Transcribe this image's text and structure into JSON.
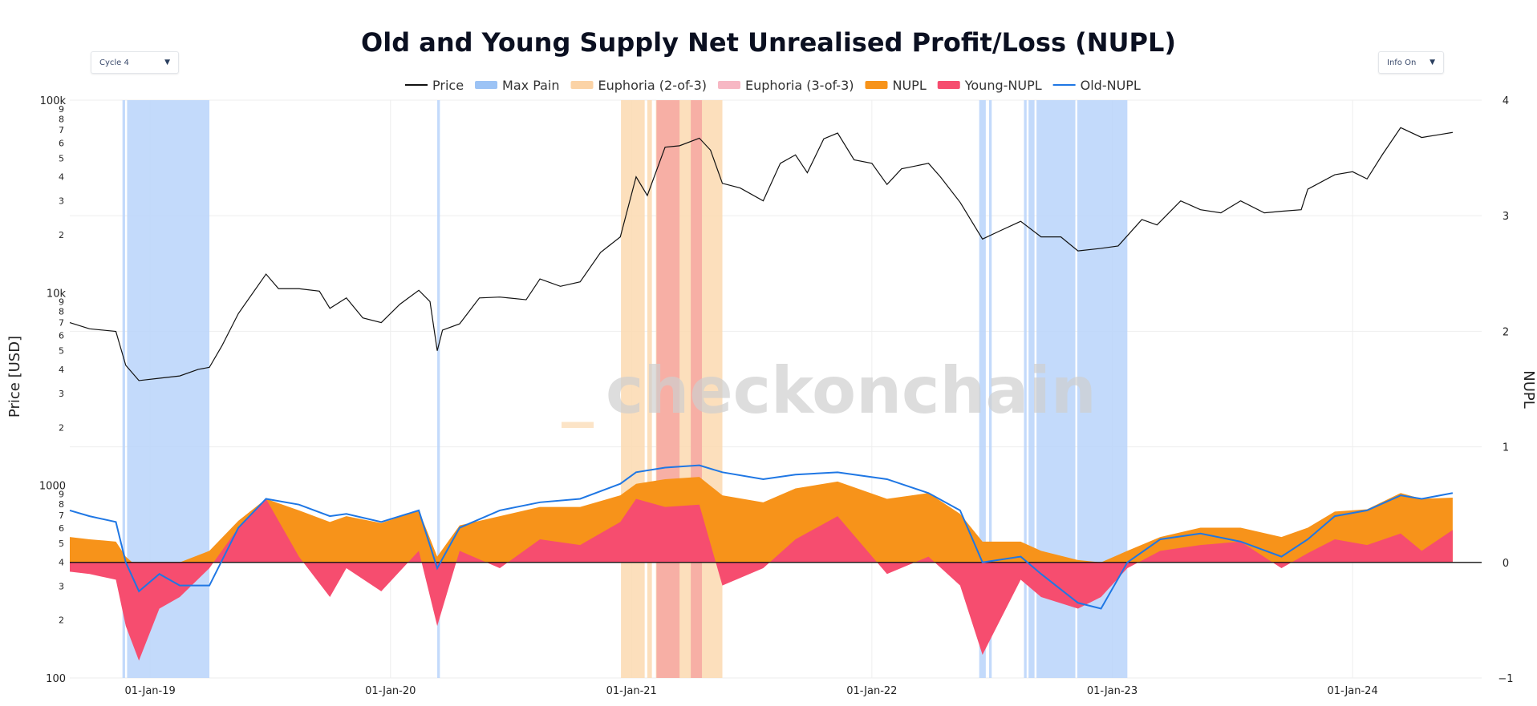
{
  "dropdowns": {
    "cycle": {
      "label": "Cycle 4",
      "caret": "▼"
    },
    "info": {
      "label": "Info On",
      "caret": "▼"
    }
  },
  "watermark": {
    "prefix": "_",
    "text": "checkonchain"
  },
  "chart_data": {
    "type": "line",
    "title": "Old and Young Supply Net Unrealised Profit/Loss (NUPL)",
    "ylabel_left": "Price [USD]",
    "ylabel_right": "NUPL",
    "y_left_scale": "log",
    "y_left_range": [
      100,
      100000
    ],
    "y_right_range": [
      -1,
      4
    ],
    "x_range": [
      "2018-09-01",
      "2024-07-15"
    ],
    "x_ticks": [
      {
        "date": "2019-01-01",
        "label": "01-Jan-19"
      },
      {
        "date": "2020-01-01",
        "label": "01-Jan-20"
      },
      {
        "date": "2021-01-01",
        "label": "01-Jan-21"
      },
      {
        "date": "2022-01-01",
        "label": "01-Jan-22"
      },
      {
        "date": "2023-01-01",
        "label": "01-Jan-23"
      },
      {
        "date": "2024-01-01",
        "label": "01-Jan-24"
      }
    ],
    "y_left_major_ticks": [
      {
        "value": 100,
        "label": "100"
      },
      {
        "value": 1000,
        "label": "1000"
      },
      {
        "value": 10000,
        "label": "10k"
      },
      {
        "value": 100000,
        "label": "100k"
      }
    ],
    "y_left_minor_labels": [
      "2",
      "3",
      "4",
      "5",
      "6",
      "7",
      "8",
      "9"
    ],
    "y_right_ticks": [
      {
        "value": -1,
        "label": "−1"
      },
      {
        "value": 0,
        "label": "0"
      },
      {
        "value": 1,
        "label": "1"
      },
      {
        "value": 2,
        "label": "2"
      },
      {
        "value": 3,
        "label": "3"
      },
      {
        "value": 4,
        "label": "4"
      }
    ],
    "grid": true,
    "legend_position": "top-center",
    "legend": [
      {
        "name": "Price",
        "kind": "line",
        "color": "#111111"
      },
      {
        "name": "Max Pain",
        "kind": "band",
        "color": "#9cc3f5"
      },
      {
        "name": "Euphoria (2-of-3)",
        "kind": "band",
        "color": "#fbd3a6"
      },
      {
        "name": "Euphoria (3-of-3)",
        "kind": "band",
        "color": "#f7b8c4"
      },
      {
        "name": "NUPL",
        "kind": "area",
        "color": "#f7931a"
      },
      {
        "name": "Young-NUPL",
        "kind": "area",
        "color": "#f64d6f"
      },
      {
        "name": "Old-NUPL",
        "kind": "line",
        "color": "#1f77e4"
      }
    ],
    "colors": {
      "price": "#111111",
      "max_pain": "#b9d4fa",
      "max_pain_edge": "#4a90e2",
      "euphoria2": "#fcd9b0",
      "euphoria3": "#f6a7a1",
      "nupl": "#f7931a",
      "young_nupl": "#f64d6f",
      "old_nupl": "#1f77e4"
    },
    "max_pain_bands": [
      [
        "2018-11-20",
        "2018-11-24"
      ],
      [
        "2018-11-27",
        "2019-04-01"
      ],
      [
        "2020-03-12",
        "2020-03-16"
      ],
      [
        "2022-06-13",
        "2022-06-23"
      ],
      [
        "2022-06-28",
        "2022-07-02"
      ],
      [
        "2022-08-20",
        "2022-08-24"
      ],
      [
        "2022-08-27",
        "2022-09-05"
      ],
      [
        "2022-09-08",
        "2022-11-06"
      ],
      [
        "2022-11-09",
        "2023-01-24"
      ]
    ],
    "euphoria2_bands": [
      [
        "2020-12-16",
        "2021-01-21"
      ],
      [
        "2021-01-25",
        "2021-02-01"
      ],
      [
        "2021-02-07",
        "2021-05-19"
      ]
    ],
    "euphoria3_bands": [
      [
        "2021-02-08",
        "2021-03-15"
      ],
      [
        "2021-04-01",
        "2021-04-18"
      ]
    ],
    "price_series": {
      "x": [
        "2018-09-01",
        "2018-10-01",
        "2018-11-10",
        "2018-11-25",
        "2018-12-15",
        "2019-01-15",
        "2019-02-15",
        "2019-03-15",
        "2019-04-01",
        "2019-04-20",
        "2019-05-15",
        "2019-06-26",
        "2019-07-15",
        "2019-08-15",
        "2019-09-15",
        "2019-10-01",
        "2019-10-26",
        "2019-11-20",
        "2019-12-18",
        "2020-01-15",
        "2020-02-13",
        "2020-03-01",
        "2020-03-12",
        "2020-03-20",
        "2020-04-15",
        "2020-05-15",
        "2020-06-15",
        "2020-07-25",
        "2020-08-15",
        "2020-09-15",
        "2020-10-15",
        "2020-11-15",
        "2020-12-15",
        "2021-01-08",
        "2021-01-25",
        "2021-02-21",
        "2021-03-15",
        "2021-04-14",
        "2021-05-01",
        "2021-05-19",
        "2021-06-15",
        "2021-07-20",
        "2021-08-15",
        "2021-09-07",
        "2021-09-25",
        "2021-10-20",
        "2021-11-10",
        "2021-12-05",
        "2022-01-01",
        "2022-01-24",
        "2022-02-15",
        "2022-03-28",
        "2022-04-15",
        "2022-05-15",
        "2022-06-18",
        "2022-07-15",
        "2022-08-15",
        "2022-09-15",
        "2022-10-15",
        "2022-11-10",
        "2022-12-15",
        "2023-01-10",
        "2023-02-15",
        "2023-03-10",
        "2023-04-15",
        "2023-05-15",
        "2023-06-15",
        "2023-07-15",
        "2023-08-20",
        "2023-09-15",
        "2023-10-15",
        "2023-10-25",
        "2023-12-05",
        "2024-01-01",
        "2024-01-23",
        "2024-02-15",
        "2024-03-14",
        "2024-04-15",
        "2024-05-15",
        "2024-06-01"
      ],
      "y": [
        7000,
        6500,
        6300,
        4200,
        3500,
        3600,
        3700,
        4000,
        4100,
        5300,
        7800,
        12500,
        10500,
        10500,
        10200,
        8300,
        9400,
        7400,
        7000,
        8700,
        10300,
        9000,
        5000,
        6400,
        6900,
        9400,
        9500,
        9200,
        11800,
        10800,
        11400,
        16200,
        19500,
        40000,
        32000,
        57000,
        58000,
        63500,
        55000,
        37000,
        35000,
        30000,
        47000,
        52000,
        42000,
        63000,
        67500,
        49000,
        47000,
        36500,
        44000,
        47000,
        40000,
        29500,
        19000,
        21000,
        23500,
        19500,
        19500,
        16500,
        17000,
        17500,
        24000,
        22500,
        30000,
        27000,
        26000,
        30000,
        26000,
        26500,
        27000,
        34500,
        41000,
        42500,
        39000,
        52000,
        72000,
        64000,
        66500,
        68000
      ]
    },
    "nupl_series": {
      "x": [
        "2018-09-01",
        "2018-10-01",
        "2018-11-10",
        "2018-11-25",
        "2018-12-15",
        "2019-01-15",
        "2019-02-15",
        "2019-04-01",
        "2019-05-15",
        "2019-06-26",
        "2019-08-15",
        "2019-10-01",
        "2019-10-26",
        "2019-12-18",
        "2020-02-13",
        "2020-03-12",
        "2020-04-15",
        "2020-06-15",
        "2020-08-15",
        "2020-10-15",
        "2020-12-15",
        "2021-01-08",
        "2021-02-21",
        "2021-04-14",
        "2021-05-19",
        "2021-07-20",
        "2021-09-07",
        "2021-11-10",
        "2022-01-24",
        "2022-03-28",
        "2022-05-15",
        "2022-06-18",
        "2022-08-15",
        "2022-09-15",
        "2022-11-10",
        "2022-12-15",
        "2023-01-24",
        "2023-03-15",
        "2023-05-15",
        "2023-07-15",
        "2023-09-15",
        "2023-10-25",
        "2023-12-05",
        "2024-01-23",
        "2024-03-14",
        "2024-04-15",
        "2024-06-01"
      ],
      "y": [
        0.22,
        0.2,
        0.18,
        0.05,
        -0.05,
        -0.02,
        0.0,
        0.1,
        0.36,
        0.55,
        0.45,
        0.35,
        0.4,
        0.34,
        0.45,
        0.05,
        0.32,
        0.4,
        0.48,
        0.48,
        0.58,
        0.68,
        0.72,
        0.74,
        0.58,
        0.52,
        0.64,
        0.7,
        0.55,
        0.6,
        0.42,
        0.18,
        0.18,
        0.1,
        0.02,
        0.0,
        0.1,
        0.22,
        0.3,
        0.3,
        0.22,
        0.3,
        0.44,
        0.46,
        0.6,
        0.55,
        0.56
      ]
    },
    "young_nupl_series": {
      "x": [
        "2018-09-01",
        "2018-10-01",
        "2018-11-10",
        "2018-11-25",
        "2018-12-15",
        "2019-01-15",
        "2019-02-15",
        "2019-04-01",
        "2019-05-15",
        "2019-06-26",
        "2019-08-15",
        "2019-10-01",
        "2019-10-26",
        "2019-12-18",
        "2020-02-13",
        "2020-03-12",
        "2020-04-15",
        "2020-06-15",
        "2020-08-15",
        "2020-10-15",
        "2020-12-15",
        "2021-01-08",
        "2021-02-21",
        "2021-04-14",
        "2021-05-19",
        "2021-07-20",
        "2021-09-07",
        "2021-11-10",
        "2022-01-24",
        "2022-03-28",
        "2022-05-15",
        "2022-06-18",
        "2022-08-15",
        "2022-09-15",
        "2022-11-10",
        "2022-12-15",
        "2023-01-24",
        "2023-03-15",
        "2023-05-15",
        "2023-07-15",
        "2023-09-15",
        "2023-10-25",
        "2023-12-05",
        "2024-01-23",
        "2024-03-14",
        "2024-04-15",
        "2024-06-01"
      ],
      "y": [
        -0.08,
        -0.1,
        -0.15,
        -0.55,
        -0.85,
        -0.4,
        -0.3,
        -0.05,
        0.3,
        0.55,
        0.05,
        -0.3,
        -0.05,
        -0.25,
        0.1,
        -0.55,
        0.1,
        -0.05,
        0.2,
        0.15,
        0.35,
        0.55,
        0.48,
        0.5,
        -0.2,
        -0.05,
        0.2,
        0.4,
        -0.1,
        0.05,
        -0.2,
        -0.8,
        -0.15,
        -0.3,
        -0.4,
        -0.3,
        -0.05,
        0.1,
        0.15,
        0.18,
        -0.05,
        0.08,
        0.2,
        0.15,
        0.25,
        0.1,
        0.28
      ]
    },
    "old_nupl_series": {
      "x": [
        "2018-09-01",
        "2018-10-01",
        "2018-11-10",
        "2018-11-25",
        "2018-12-15",
        "2019-01-15",
        "2019-02-15",
        "2019-04-01",
        "2019-05-15",
        "2019-06-26",
        "2019-08-15",
        "2019-10-01",
        "2019-10-26",
        "2019-12-18",
        "2020-02-13",
        "2020-03-12",
        "2020-04-15",
        "2020-06-15",
        "2020-08-15",
        "2020-10-15",
        "2020-12-15",
        "2021-01-08",
        "2021-02-21",
        "2021-04-14",
        "2021-05-19",
        "2021-07-20",
        "2021-09-07",
        "2021-11-10",
        "2022-01-24",
        "2022-03-28",
        "2022-05-15",
        "2022-06-18",
        "2022-08-15",
        "2022-09-15",
        "2022-11-10",
        "2022-12-15",
        "2023-01-24",
        "2023-03-15",
        "2023-05-15",
        "2023-07-15",
        "2023-09-15",
        "2023-10-25",
        "2023-12-05",
        "2024-01-23",
        "2024-03-14",
        "2024-04-15",
        "2024-06-01"
      ],
      "y": [
        0.45,
        0.4,
        0.35,
        0.0,
        -0.25,
        -0.1,
        -0.2,
        -0.2,
        0.3,
        0.55,
        0.5,
        0.4,
        0.42,
        0.35,
        0.45,
        -0.05,
        0.3,
        0.45,
        0.52,
        0.55,
        0.68,
        0.78,
        0.82,
        0.84,
        0.78,
        0.72,
        0.76,
        0.78,
        0.72,
        0.6,
        0.45,
        0.0,
        0.05,
        -0.1,
        -0.35,
        -0.4,
        0.0,
        0.2,
        0.25,
        0.18,
        0.05,
        0.2,
        0.4,
        0.45,
        0.58,
        0.55,
        0.6
      ]
    }
  }
}
